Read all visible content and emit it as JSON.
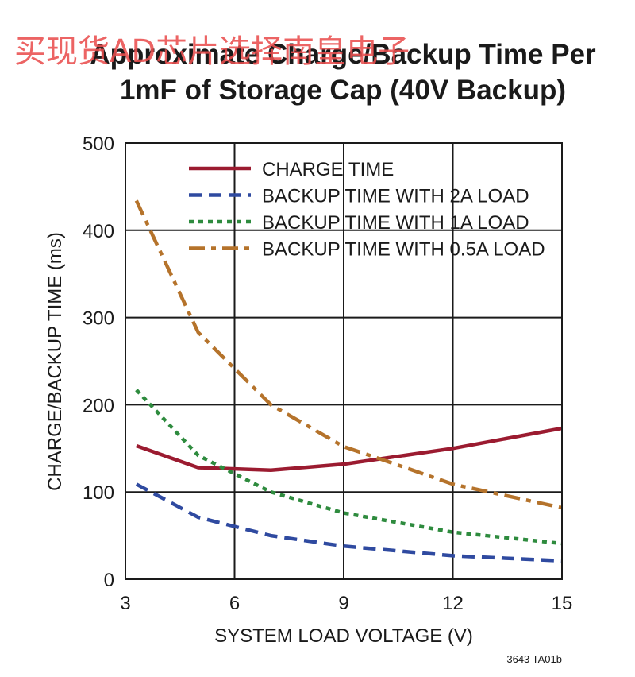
{
  "watermark": "买现货AD芯片选择南皇电子",
  "figure_code": "3643 TA01b",
  "chart_data": {
    "type": "line",
    "title": [
      "Approximate Charge/Backup Time Per",
      "1mF of Storage Cap (40V Backup)"
    ],
    "xlabel": "SYSTEM LOAD VOLTAGE (V)",
    "ylabel": "CHARGE/BACKUP TIME (ms)",
    "xlim": [
      3,
      15
    ],
    "ylim": [
      0,
      500
    ],
    "xticks": [
      3,
      6,
      9,
      12,
      15
    ],
    "yticks": [
      0,
      100,
      200,
      300,
      400,
      500
    ],
    "grid": true,
    "legend_position": "top-right",
    "series": [
      {
        "name": "CHARGE TIME",
        "color": "#9b1b30",
        "style": "solid",
        "points": [
          [
            3.3,
            153
          ],
          [
            5,
            128
          ],
          [
            7,
            125
          ],
          [
            9,
            132
          ],
          [
            12,
            150
          ],
          [
            15,
            173
          ]
        ]
      },
      {
        "name": "BACKUP TIME WITH 2A LOAD",
        "color": "#2f4aa0",
        "style": "dash",
        "points": [
          [
            3.3,
            109
          ],
          [
            5,
            71
          ],
          [
            7,
            50
          ],
          [
            9,
            38
          ],
          [
            12,
            27
          ],
          [
            15,
            21
          ]
        ]
      },
      {
        "name": "BACKUP TIME WITH 1A LOAD",
        "color": "#2e8b3e",
        "style": "dot",
        "points": [
          [
            3.3,
            217
          ],
          [
            5,
            142
          ],
          [
            7,
            100
          ],
          [
            9,
            76
          ],
          [
            12,
            54
          ],
          [
            15,
            41
          ]
        ]
      },
      {
        "name": "BACKUP TIME WITH 0.5A LOAD",
        "color": "#b5732b",
        "style": "dashdot",
        "points": [
          [
            3.3,
            434
          ],
          [
            5,
            283
          ],
          [
            7,
            200
          ],
          [
            9,
            152
          ],
          [
            10,
            138
          ],
          [
            12,
            109
          ],
          [
            15,
            82
          ]
        ]
      }
    ]
  }
}
